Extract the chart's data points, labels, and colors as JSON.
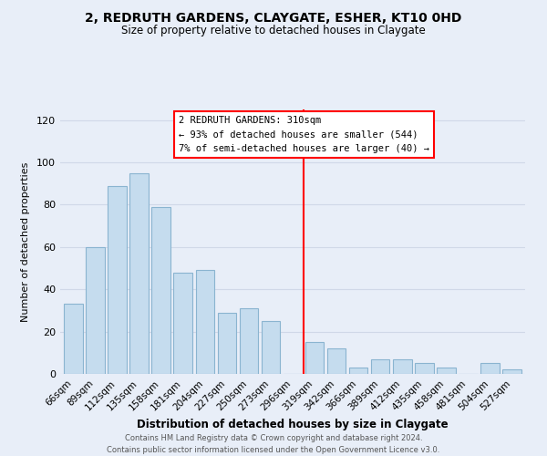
{
  "title": "2, REDRUTH GARDENS, CLAYGATE, ESHER, KT10 0HD",
  "subtitle": "Size of property relative to detached houses in Claygate",
  "xlabel": "Distribution of detached houses by size in Claygate",
  "ylabel": "Number of detached properties",
  "bar_labels": [
    "66sqm",
    "89sqm",
    "112sqm",
    "135sqm",
    "158sqm",
    "181sqm",
    "204sqm",
    "227sqm",
    "250sqm",
    "273sqm",
    "296sqm",
    "319sqm",
    "342sqm",
    "366sqm",
    "389sqm",
    "412sqm",
    "435sqm",
    "458sqm",
    "481sqm",
    "504sqm",
    "527sqm"
  ],
  "bar_values": [
    33,
    60,
    89,
    95,
    79,
    48,
    49,
    29,
    31,
    25,
    0,
    15,
    12,
    3,
    7,
    7,
    5,
    3,
    0,
    5,
    2
  ],
  "bar_color": "#c5dcee",
  "bar_edge_color": "#8ab4d0",
  "grid_color": "#d0d8e8",
  "vline_color": "red",
  "vline_x_index": 10.5,
  "annotation_title": "2 REDRUTH GARDENS: 310sqm",
  "annotation_line1": "← 93% of detached houses are smaller (544)",
  "annotation_line2": "7% of semi-detached houses are larger (40) →",
  "footer_line1": "Contains HM Land Registry data © Crown copyright and database right 2024.",
  "footer_line2": "Contains public sector information licensed under the Open Government Licence v3.0.",
  "ylim": [
    0,
    125
  ],
  "yticks": [
    0,
    20,
    40,
    60,
    80,
    100,
    120
  ],
  "background_color": "#e8eef8",
  "plot_bg_color": "#e8eef8"
}
